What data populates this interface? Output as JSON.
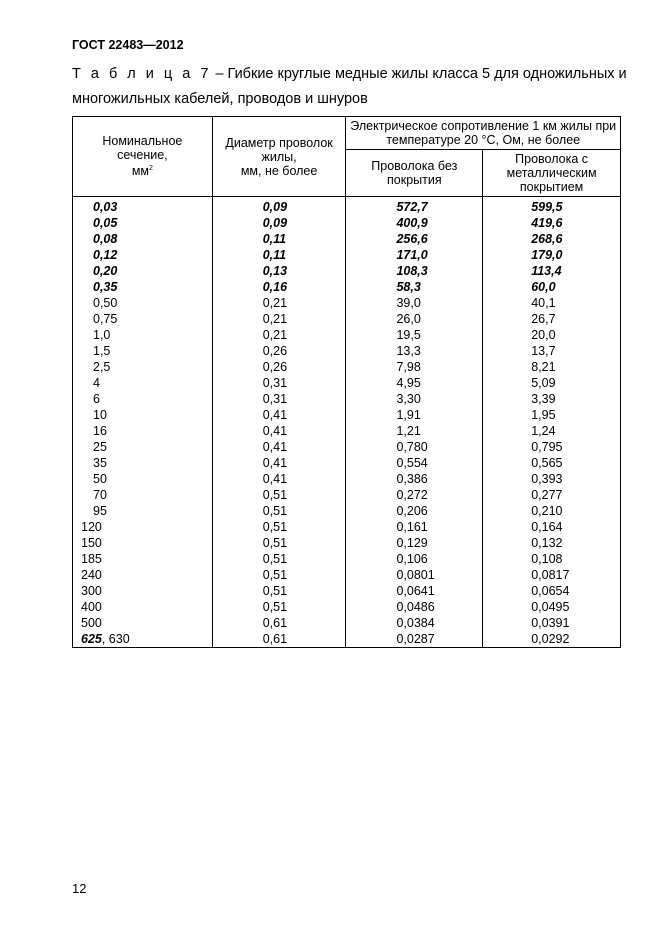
{
  "header": {
    "standard": "ГОСТ 22483—2012"
  },
  "caption": {
    "label": "Т а б л и ц а 7",
    "text": " – Гибкие круглые медные жилы класса 5 для одножильных и многожильных кабелей, проводов и шнуров"
  },
  "table": {
    "headers": {
      "col1": "Номинальное сечение,",
      "col1_unit": "мм",
      "col1_sup": "2",
      "col2": "Диаметр проволок жилы,",
      "col2_unit": "мм, не более",
      "group": "Электрическое сопротивление 1 км жилы при температуре 20 °С, Ом, не более",
      "col3": "Проволока без покрытия",
      "col4": "Проволока с металлическим покрытием"
    },
    "rows": [
      {
        "size": "0,03",
        "dia": "0,09",
        "r_plain": "572,7",
        "r_coated": "599,5",
        "bold": true
      },
      {
        "size": "0,05",
        "dia": "0,09",
        "r_plain": "400,9",
        "r_coated": "419,6",
        "bold": true
      },
      {
        "size": "0,08",
        "dia": "0,11",
        "r_plain": "256,6",
        "r_coated": "268,6",
        "bold": true
      },
      {
        "size": "0,12",
        "dia": "0,11",
        "r_plain": "171,0",
        "r_coated": "179,0",
        "bold": true
      },
      {
        "size": "0,20",
        "dia": "0,13",
        "r_plain": "108,3",
        "r_coated": "113,4",
        "bold": true
      },
      {
        "size": "0,35",
        "dia": "0,16",
        "r_plain": "58,3",
        "r_coated": "60,0",
        "bold": true
      },
      {
        "size": "0,50",
        "dia": "0,21",
        "r_plain": "39,0",
        "r_coated": "40,1"
      },
      {
        "size": "0,75",
        "dia": "0,21",
        "r_plain": "26,0",
        "r_coated": "26,7"
      },
      {
        "size": "1,0",
        "dia": "0,21",
        "r_plain": "19,5",
        "r_coated": "20,0"
      },
      {
        "size": "1,5",
        "dia": "0,26",
        "r_plain": "13,3",
        "r_coated": "13,7"
      },
      {
        "size": "2,5",
        "dia": "0,26",
        "r_plain": "7,98",
        "r_coated": "8,21"
      },
      {
        "size": "4",
        "dia": "0,31",
        "r_plain": "4,95",
        "r_coated": "5,09"
      },
      {
        "size": "6",
        "dia": "0,31",
        "r_plain": "3,30",
        "r_coated": "3,39"
      },
      {
        "size": "10",
        "dia": "0,41",
        "r_plain": "1,91",
        "r_coated": "1,95"
      },
      {
        "size": "16",
        "dia": "0,41",
        "r_plain": "1,21",
        "r_coated": "1,24"
      },
      {
        "size": "25",
        "dia": "0,41",
        "r_plain": "0,780",
        "r_coated": "0,795"
      },
      {
        "size": "35",
        "dia": "0,41",
        "r_plain": "0,554",
        "r_coated": "0,565"
      },
      {
        "size": "50",
        "dia": "0,41",
        "r_plain": "0,386",
        "r_coated": "0,393"
      },
      {
        "size": "70",
        "dia": "0,51",
        "r_plain": "0,272",
        "r_coated": "0,277"
      },
      {
        "size": "95",
        "dia": "0,51",
        "r_plain": "0,206",
        "r_coated": "0,210"
      },
      {
        "size": "120",
        "dia": "0,51",
        "r_plain": "0,161",
        "r_coated": "0,164"
      },
      {
        "size": "150",
        "dia": "0,51",
        "r_plain": "0,129",
        "r_coated": "0,132"
      },
      {
        "size": "185",
        "dia": "0,51",
        "r_plain": "0,106",
        "r_coated": "0,108"
      },
      {
        "size": "240",
        "dia": "0,51",
        "r_plain": "0,0801",
        "r_coated": "0,0817"
      },
      {
        "size": "300",
        "dia": "0,51",
        "r_plain": "0,0641",
        "r_coated": "0,0654"
      },
      {
        "size": "400",
        "dia": "0,51",
        "r_plain": "0,0486",
        "r_coated": "0,0495"
      },
      {
        "size": "500",
        "dia": "0,61",
        "r_plain": "0,0384",
        "r_coated": "0,0391"
      },
      {
        "size_bold": "625",
        "size": ", 630",
        "dia": "0,61",
        "r_plain": "0,0287",
        "r_coated": "0,0292"
      }
    ]
  },
  "footer": {
    "page_number": "12"
  }
}
